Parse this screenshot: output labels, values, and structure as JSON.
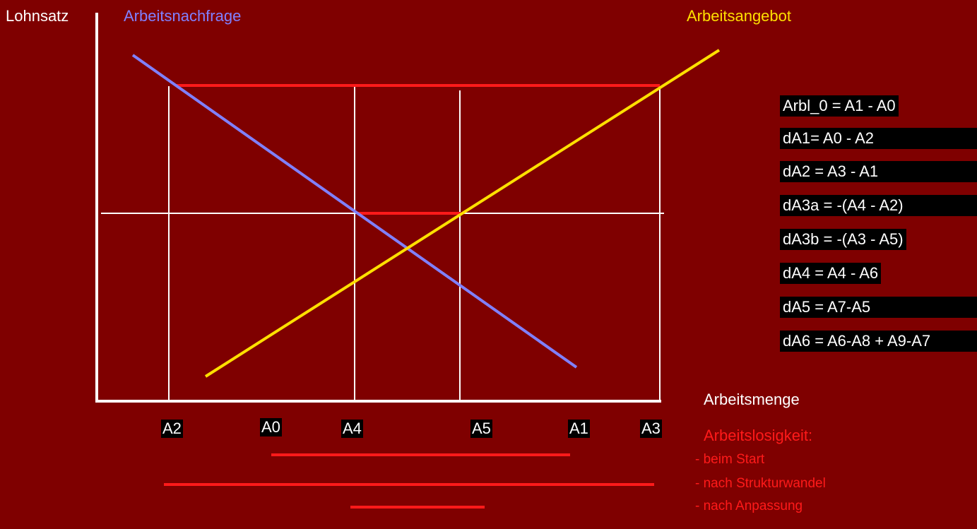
{
  "axes": {
    "y_label": "Lohnsatz",
    "x_label": "Arbeitsmenge"
  },
  "curves": {
    "demand_label": "Arbeitsnachfrage",
    "supply_label": "Arbeitsangebot"
  },
  "ticks": [
    "A2",
    "A0",
    "A4",
    "A5",
    "A1",
    "A3"
  ],
  "formulas": [
    "Arbl_0 = A1 - A0",
    "dA1= A0 - A2",
    "dA2 = A3 - A1",
    "dA3a = -(A4 - A2)",
    "dA3b = -(A3 - A5)",
    "dA4 = A4 - A6",
    "dA5 = A7-A5",
    "dA6 = A6-A8 + A9-A7"
  ],
  "legend": {
    "title": "Arbeitslosigkeit:",
    "items": [
      "- beim  Start",
      "- nach Strukturwandel",
      "- nach Anpassung"
    ]
  },
  "colors": {
    "background": "#7f0000",
    "demand": "#8080ff",
    "supply": "#ffe000",
    "unemployment": "#ff1a1a",
    "axis": "#ffffff"
  }
}
